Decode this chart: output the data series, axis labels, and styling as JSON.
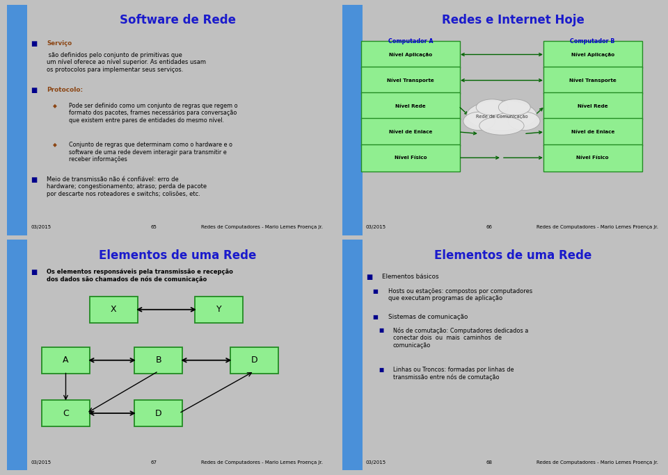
{
  "bg_color": "#FFFFF0",
  "blue_bar_color": "#4A90D9",
  "title_color": "#1a1acc",
  "dark_blue": "#00008B",
  "brown": "#8B4513",
  "green_box_bg": "#90EE90",
  "green_box_border": "#228B22",
  "arrow_color_green": "#006400",
  "cloud_fill": "#E8E8E8",
  "cloud_edge": "#A0A0A0",
  "slide1_title": "Software de Rede",
  "slide2_title": "Redes e Internet Hoje",
  "slide3_title": "Elementos de uma Rede",
  "slide4_title": "Elementos de uma Rede",
  "footer_left": "03/2015",
  "footer_center1": "65",
  "footer_center2": "66",
  "footer_center3": "67",
  "footer_center4": "68",
  "footer_right": "Redes de Computadores - Mario Lemes Proença Jr.",
  "slide2_layers": [
    "Nível Aplicação",
    "Nível Transporte",
    "Nível Rede",
    "Nível de Enlace",
    "Nível Físico"
  ],
  "slide2_compA": "Computador A",
  "slide2_compB": "Computador B",
  "slide2_cloud": "Rede de Comunicação",
  "gray_bg": "#C0C0C0"
}
